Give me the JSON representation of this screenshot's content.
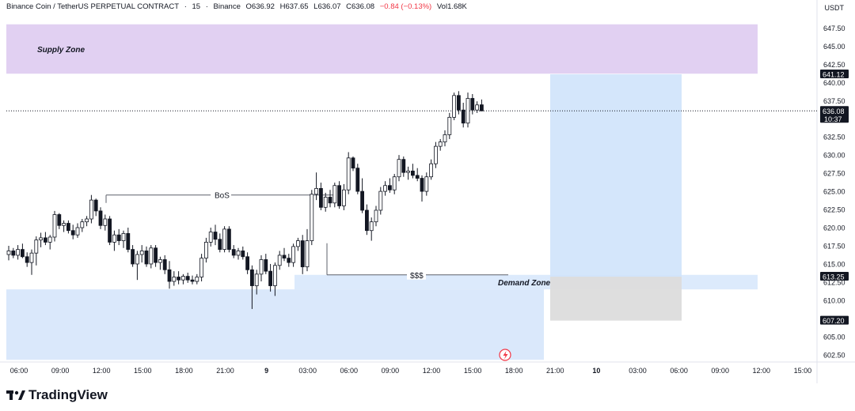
{
  "header": {
    "symbol": "Binance Coin / TetherUS PERPETUAL CONTRACT",
    "interval": "15",
    "exchange": "Binance",
    "open": "O636.92",
    "high": "H637.65",
    "low": "L636.07",
    "close": "C636.08",
    "change": "−0.84 (−0.13%)",
    "volume": "Vol1.68K"
  },
  "currency": "USDT",
  "brand": "TradingView",
  "colors": {
    "supply_zone": "#dcc8f0",
    "demand_zone": "#d6e6fb",
    "up_candle": "#131722",
    "down_candle": "#131722",
    "price_tag": "#131722",
    "target_box": "#cfe3fb",
    "stop_box": "#dcdcdc"
  },
  "chart_data": {
    "type": "candlestick",
    "y_range": [
      601.5,
      649.5
    ],
    "y_ticks": [
      "647.50",
      "645.00",
      "642.50",
      "640.00",
      "637.50",
      "632.50",
      "630.00",
      "627.50",
      "625.00",
      "622.50",
      "620.00",
      "617.50",
      "615.00",
      "612.50",
      "610.00",
      "605.00",
      "602.50"
    ],
    "x_ticks": [
      "06:00",
      "09:00",
      "12:00",
      "15:00",
      "18:00",
      "21:00",
      "9",
      "03:00",
      "06:00",
      "09:00",
      "12:00",
      "15:00",
      "18:00",
      "21:00",
      "10",
      "03:00",
      "06:00",
      "09:00",
      "12:00",
      "15:00"
    ],
    "price_labels": [
      {
        "text": "641.12",
        "value": 641.12
      },
      {
        "text": "636.08",
        "value": 636.08,
        "sub": "10:37"
      },
      {
        "text": "613.25",
        "value": 613.25
      },
      {
        "text": "607.20",
        "value": 607.2
      }
    ],
    "current_price": 636.08,
    "annotations": {
      "supply_zone": {
        "label": "Supply Zone",
        "low": 641.2,
        "high": 648.0
      },
      "demand_zone": {
        "label": "Demand Zone",
        "low": 611.5,
        "high": 613.5
      },
      "lower_demand": {
        "low": 601.8,
        "high": 611.5
      },
      "bos": {
        "label": "BoS",
        "price": 624.5
      },
      "liquidity": {
        "label": "$$$",
        "price": 613.5
      },
      "target": {
        "low": 613.25,
        "high": 641.12
      },
      "stop": {
        "low": 607.2,
        "high": 613.25
      }
    },
    "candles": [
      {
        "o": 616.3,
        "h": 617.5,
        "l": 615.5,
        "c": 616.8
      },
      {
        "o": 616.8,
        "h": 617.2,
        "l": 615.8,
        "c": 616.2
      },
      {
        "o": 616.2,
        "h": 617.6,
        "l": 615.6,
        "c": 617.0
      },
      {
        "o": 617.0,
        "h": 617.8,
        "l": 615.8,
        "c": 616.0
      },
      {
        "o": 616.0,
        "h": 616.6,
        "l": 614.6,
        "c": 615.2
      },
      {
        "o": 615.2,
        "h": 617.0,
        "l": 613.5,
        "c": 616.5
      },
      {
        "o": 616.5,
        "h": 618.8,
        "l": 614.8,
        "c": 618.3
      },
      {
        "o": 618.3,
        "h": 619.3,
        "l": 617.3,
        "c": 618.6
      },
      {
        "o": 618.6,
        "h": 619.4,
        "l": 617.6,
        "c": 618.0
      },
      {
        "o": 618.0,
        "h": 619.0,
        "l": 617.0,
        "c": 618.7
      },
      {
        "o": 618.7,
        "h": 622.3,
        "l": 618.1,
        "c": 621.8
      },
      {
        "o": 621.8,
        "h": 622.0,
        "l": 619.8,
        "c": 620.3
      },
      {
        "o": 620.3,
        "h": 621.0,
        "l": 619.4,
        "c": 620.6
      },
      {
        "o": 620.6,
        "h": 621.0,
        "l": 619.2,
        "c": 619.6
      },
      {
        "o": 619.6,
        "h": 620.4,
        "l": 618.4,
        "c": 619.0
      },
      {
        "o": 619.0,
        "h": 620.6,
        "l": 618.6,
        "c": 620.0
      },
      {
        "o": 620.0,
        "h": 621.2,
        "l": 619.4,
        "c": 620.8
      },
      {
        "o": 620.8,
        "h": 621.6,
        "l": 620.2,
        "c": 621.2
      },
      {
        "o": 621.2,
        "h": 624.5,
        "l": 620.6,
        "c": 623.8
      },
      {
        "o": 623.8,
        "h": 624.0,
        "l": 621.6,
        "c": 622.3
      },
      {
        "o": 622.3,
        "h": 622.8,
        "l": 619.8,
        "c": 620.3
      },
      {
        "o": 620.3,
        "h": 621.8,
        "l": 619.6,
        "c": 621.2
      },
      {
        "o": 621.2,
        "h": 621.6,
        "l": 617.6,
        "c": 618.0
      },
      {
        "o": 618.0,
        "h": 619.6,
        "l": 616.8,
        "c": 619.0
      },
      {
        "o": 619.0,
        "h": 619.8,
        "l": 617.6,
        "c": 618.2
      },
      {
        "o": 618.2,
        "h": 619.6,
        "l": 617.2,
        "c": 619.2
      },
      {
        "o": 619.2,
        "h": 620.0,
        "l": 616.6,
        "c": 617.0
      },
      {
        "o": 617.0,
        "h": 617.6,
        "l": 614.6,
        "c": 615.0
      },
      {
        "o": 615.0,
        "h": 616.8,
        "l": 612.8,
        "c": 616.3
      },
      {
        "o": 616.3,
        "h": 617.6,
        "l": 615.2,
        "c": 616.8
      },
      {
        "o": 616.8,
        "h": 617.4,
        "l": 614.6,
        "c": 615.0
      },
      {
        "o": 615.0,
        "h": 617.6,
        "l": 614.4,
        "c": 617.2
      },
      {
        "o": 617.2,
        "h": 617.6,
        "l": 614.6,
        "c": 615.2
      },
      {
        "o": 615.2,
        "h": 616.0,
        "l": 614.2,
        "c": 615.6
      },
      {
        "o": 615.6,
        "h": 616.2,
        "l": 613.6,
        "c": 614.2
      },
      {
        "o": 614.2,
        "h": 615.4,
        "l": 611.6,
        "c": 612.6
      },
      {
        "o": 612.6,
        "h": 614.0,
        "l": 612.0,
        "c": 613.2
      },
      {
        "o": 613.2,
        "h": 614.0,
        "l": 612.2,
        "c": 612.8
      },
      {
        "o": 612.8,
        "h": 613.6,
        "l": 612.2,
        "c": 613.3
      },
      {
        "o": 613.3,
        "h": 613.8,
        "l": 612.4,
        "c": 612.8
      },
      {
        "o": 612.8,
        "h": 613.4,
        "l": 612.2,
        "c": 612.6
      },
      {
        "o": 612.6,
        "h": 613.6,
        "l": 612.2,
        "c": 613.2
      },
      {
        "o": 613.2,
        "h": 616.4,
        "l": 612.6,
        "c": 615.8
      },
      {
        "o": 615.8,
        "h": 618.6,
        "l": 615.2,
        "c": 618.0
      },
      {
        "o": 618.0,
        "h": 620.0,
        "l": 617.4,
        "c": 619.4
      },
      {
        "o": 619.4,
        "h": 620.4,
        "l": 617.6,
        "c": 618.4
      },
      {
        "o": 618.4,
        "h": 619.2,
        "l": 616.6,
        "c": 617.0
      },
      {
        "o": 617.0,
        "h": 620.2,
        "l": 616.6,
        "c": 619.8
      },
      {
        "o": 619.8,
        "h": 620.2,
        "l": 616.6,
        "c": 617.0
      },
      {
        "o": 617.0,
        "h": 617.6,
        "l": 615.8,
        "c": 616.2
      },
      {
        "o": 616.2,
        "h": 617.2,
        "l": 615.6,
        "c": 616.8
      },
      {
        "o": 616.8,
        "h": 617.4,
        "l": 615.6,
        "c": 616.0
      },
      {
        "o": 616.0,
        "h": 616.6,
        "l": 613.6,
        "c": 614.2
      },
      {
        "o": 614.2,
        "h": 614.8,
        "l": 608.8,
        "c": 612.0
      },
      {
        "o": 612.0,
        "h": 614.2,
        "l": 610.8,
        "c": 613.6
      },
      {
        "o": 613.6,
        "h": 616.2,
        "l": 612.6,
        "c": 615.6
      },
      {
        "o": 615.6,
        "h": 616.4,
        "l": 613.6,
        "c": 614.0
      },
      {
        "o": 614.0,
        "h": 615.0,
        "l": 611.2,
        "c": 612.0
      },
      {
        "o": 612.0,
        "h": 615.2,
        "l": 610.6,
        "c": 614.8
      },
      {
        "o": 614.8,
        "h": 616.8,
        "l": 614.2,
        "c": 616.2
      },
      {
        "o": 616.2,
        "h": 617.2,
        "l": 615.4,
        "c": 615.8
      },
      {
        "o": 615.8,
        "h": 616.4,
        "l": 614.6,
        "c": 615.2
      },
      {
        "o": 615.2,
        "h": 617.8,
        "l": 614.6,
        "c": 617.4
      },
      {
        "o": 617.4,
        "h": 618.6,
        "l": 616.8,
        "c": 618.2
      },
      {
        "o": 618.2,
        "h": 619.0,
        "l": 613.6,
        "c": 614.6
      },
      {
        "o": 614.6,
        "h": 619.8,
        "l": 614.0,
        "c": 618.2
      },
      {
        "o": 618.2,
        "h": 625.2,
        "l": 617.6,
        "c": 624.6
      },
      {
        "o": 624.6,
        "h": 627.6,
        "l": 623.8,
        "c": 625.4
      },
      {
        "o": 625.4,
        "h": 626.2,
        "l": 622.4,
        "c": 622.8
      },
      {
        "o": 622.8,
        "h": 624.8,
        "l": 622.2,
        "c": 624.2
      },
      {
        "o": 624.2,
        "h": 625.2,
        "l": 622.8,
        "c": 623.4
      },
      {
        "o": 623.4,
        "h": 626.2,
        "l": 622.8,
        "c": 625.8
      },
      {
        "o": 625.8,
        "h": 626.4,
        "l": 622.6,
        "c": 623.0
      },
      {
        "o": 623.0,
        "h": 626.0,
        "l": 622.4,
        "c": 625.2
      },
      {
        "o": 625.2,
        "h": 630.4,
        "l": 624.6,
        "c": 629.6
      },
      {
        "o": 629.6,
        "h": 629.8,
        "l": 627.8,
        "c": 628.2
      },
      {
        "o": 628.2,
        "h": 628.8,
        "l": 624.6,
        "c": 625.0
      },
      {
        "o": 625.0,
        "h": 626.8,
        "l": 622.0,
        "c": 622.4
      },
      {
        "o": 622.4,
        "h": 623.2,
        "l": 619.0,
        "c": 619.6
      },
      {
        "o": 619.6,
        "h": 621.4,
        "l": 618.2,
        "c": 620.8
      },
      {
        "o": 620.8,
        "h": 623.0,
        "l": 620.2,
        "c": 622.4
      },
      {
        "o": 622.4,
        "h": 625.6,
        "l": 621.8,
        "c": 625.0
      },
      {
        "o": 625.0,
        "h": 626.4,
        "l": 624.4,
        "c": 625.8
      },
      {
        "o": 625.8,
        "h": 626.8,
        "l": 624.8,
        "c": 625.2
      },
      {
        "o": 625.2,
        "h": 627.4,
        "l": 624.6,
        "c": 627.0
      },
      {
        "o": 627.0,
        "h": 630.0,
        "l": 626.4,
        "c": 629.4
      },
      {
        "o": 629.4,
        "h": 629.8,
        "l": 627.0,
        "c": 627.6
      },
      {
        "o": 627.6,
        "h": 628.4,
        "l": 626.6,
        "c": 627.8
      },
      {
        "o": 627.8,
        "h": 628.8,
        "l": 626.8,
        "c": 627.2
      },
      {
        "o": 627.2,
        "h": 628.2,
        "l": 626.4,
        "c": 626.8
      },
      {
        "o": 626.8,
        "h": 627.2,
        "l": 623.6,
        "c": 625.0
      },
      {
        "o": 625.0,
        "h": 627.6,
        "l": 624.4,
        "c": 627.0
      },
      {
        "o": 627.0,
        "h": 629.4,
        "l": 626.6,
        "c": 628.8
      },
      {
        "o": 628.8,
        "h": 631.8,
        "l": 628.2,
        "c": 631.2
      },
      {
        "o": 631.2,
        "h": 632.2,
        "l": 630.6,
        "c": 631.8
      },
      {
        "o": 631.8,
        "h": 633.4,
        "l": 631.2,
        "c": 632.8
      },
      {
        "o": 632.8,
        "h": 635.8,
        "l": 632.2,
        "c": 635.2
      },
      {
        "o": 635.2,
        "h": 638.6,
        "l": 634.8,
        "c": 638.2
      },
      {
        "o": 638.2,
        "h": 638.8,
        "l": 635.6,
        "c": 636.2
      },
      {
        "o": 636.2,
        "h": 637.2,
        "l": 633.8,
        "c": 634.4
      },
      {
        "o": 634.4,
        "h": 638.6,
        "l": 633.8,
        "c": 637.8
      },
      {
        "o": 637.8,
        "h": 638.4,
        "l": 635.6,
        "c": 636.2
      },
      {
        "o": 636.2,
        "h": 637.4,
        "l": 635.8,
        "c": 636.9
      },
      {
        "o": 636.92,
        "h": 637.65,
        "l": 636.07,
        "c": 636.08
      }
    ]
  }
}
